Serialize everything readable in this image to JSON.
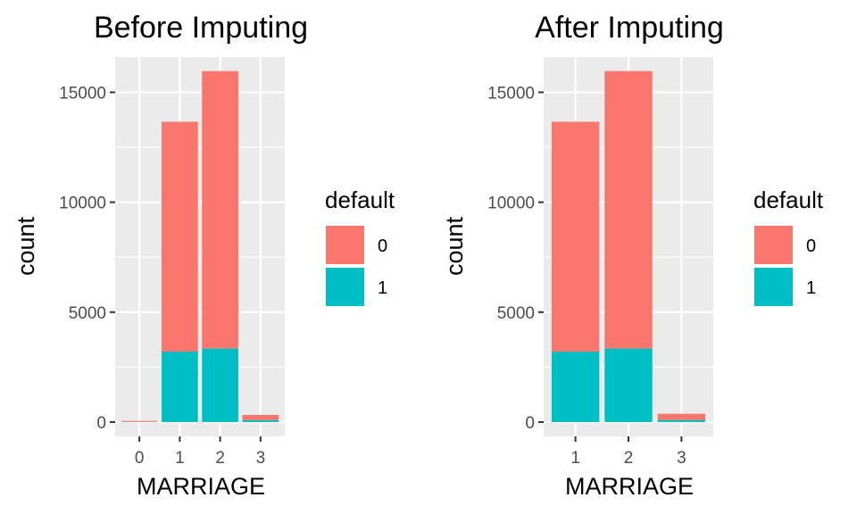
{
  "chart_data": [
    {
      "type": "bar",
      "stacked": true,
      "title": "Before Imputing",
      "xlabel": "MARRIAGE",
      "ylabel": "count",
      "categories": [
        "0",
        "1",
        "2",
        "3"
      ],
      "series": [
        {
          "name": "0",
          "values": [
            49,
            10453,
            12623,
            239
          ]
        },
        {
          "name": "1",
          "values": [
            5,
            3206,
            3341,
            84
          ]
        }
      ],
      "yticks": [
        "0",
        "5000",
        "10000",
        "15000"
      ],
      "ylim": [
        -650,
        16600
      ],
      "legend": {
        "title": "default",
        "labels": [
          "0",
          "1"
        ],
        "placement": "right"
      },
      "colors": {
        "0": "#f8766d",
        "1": "#00bfc4"
      },
      "grid": true
    },
    {
      "type": "bar",
      "stacked": true,
      "title": "After Imputing",
      "xlabel": "MARRIAGE",
      "ylabel": "count",
      "categories": [
        "1",
        "2",
        "3"
      ],
      "series": [
        {
          "name": "0",
          "values": [
            10453,
            12623,
            288
          ]
        },
        {
          "name": "1",
          "values": [
            3206,
            3341,
            89
          ]
        }
      ],
      "yticks": [
        "0",
        "5000",
        "10000",
        "15000"
      ],
      "ylim": [
        -650,
        16600
      ],
      "legend": {
        "title": "default",
        "labels": [
          "0",
          "1"
        ],
        "placement": "right"
      },
      "colors": {
        "0": "#f8766d",
        "1": "#00bfc4"
      },
      "grid": true
    }
  ]
}
